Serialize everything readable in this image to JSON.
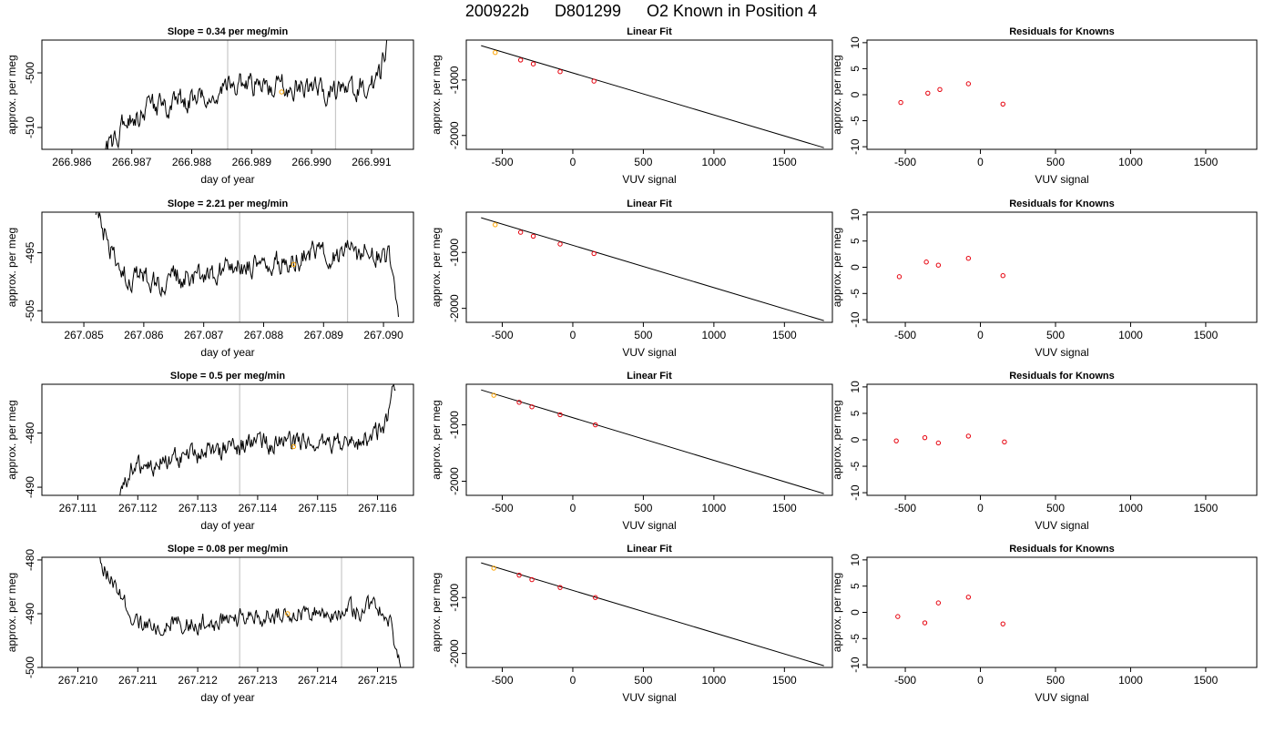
{
  "figure": {
    "title_run": "200922b",
    "title_id": "D801299",
    "title_desc": "O2 Known in Position  4"
  },
  "colors": {
    "trace": "#000000",
    "marker_standard": "#e6000c",
    "marker_highlight": "#ffa500",
    "vline": "#c8c8c8"
  },
  "chart_data": [
    {
      "panel": "trace-1",
      "type": "line",
      "title": "Slope =  0.34  per meg/min",
      "xlabel": "day of year",
      "ylabel": "approx. per meg",
      "xlim": [
        266.9855,
        266.9917
      ],
      "ylim": [
        -514,
        -494
      ],
      "xticks": [
        "266.986",
        "266.987",
        "266.988",
        "266.989",
        "266.990",
        "266.991"
      ],
      "xtick_values": [
        266.986,
        266.987,
        266.988,
        266.989,
        266.99,
        266.991
      ],
      "yticks": [
        "-500",
        "-510"
      ],
      "ytick_values": [
        -500,
        -510
      ],
      "vlines": [
        266.9886,
        266.9904
      ],
      "highlight": {
        "x": 266.9895,
        "y": -503.5
      },
      "trace": {
        "start": 266.98655,
        "end": 266.99135,
        "anchors": [
          [
            266.98655,
            -515
          ],
          [
            266.9869,
            -509
          ],
          [
            266.9873,
            -506.5
          ],
          [
            266.9879,
            -505
          ],
          [
            266.9884,
            -504.5
          ],
          [
            266.98865,
            -502
          ],
          [
            266.9892,
            -502.5
          ],
          [
            266.9897,
            -502.5
          ],
          [
            266.9902,
            -503
          ],
          [
            266.9907,
            -503
          ],
          [
            266.991,
            -502.5
          ],
          [
            266.99115,
            -500
          ],
          [
            266.9913,
            -493
          ]
        ],
        "noise": 1.8
      }
    },
    {
      "panel": "fit-1",
      "type": "scatter+line",
      "title": "Linear Fit",
      "xlabel": "VUV signal",
      "ylabel": "approx. per meg",
      "xlim": [
        -755,
        1840
      ],
      "ylim": [
        -2250,
        -280
      ],
      "xticks": [
        "-500",
        "0",
        "500",
        "1000",
        "1500"
      ],
      "xtick_values": [
        -500,
        0,
        500,
        1000,
        1500
      ],
      "yticks": [
        "-1000",
        "-2000"
      ],
      "ytick_values": [
        -1000,
        -2000
      ],
      "line": {
        "x": [
          -650,
          1780
        ],
        "y": [
          -380,
          -2220
        ]
      },
      "points": {
        "x": [
          -550,
          -370,
          -280,
          -90,
          150
        ],
        "y": [
          -505,
          -640,
          -710,
          -850,
          -1020
        ]
      },
      "highlight_index": 0
    },
    {
      "panel": "res-1",
      "type": "scatter",
      "title": "Residuals for Knowns",
      "xlabel": "VUV signal",
      "ylabel": "approx. per meg",
      "xlim": [
        -755,
        1840
      ],
      "ylim": [
        -10.5,
        10.5
      ],
      "xticks": [
        "-500",
        "0",
        "500",
        "1000",
        "1500"
      ],
      "xtick_values": [
        -500,
        0,
        500,
        1000,
        1500
      ],
      "yticks": [
        "-10",
        "-5",
        "0",
        "5",
        "10"
      ],
      "ytick_values": [
        -10,
        -5,
        0,
        5,
        10
      ],
      "points": {
        "x": [
          -530,
          -350,
          -270,
          -80,
          150
        ],
        "y": [
          -1.5,
          0.3,
          1.0,
          2.1,
          -1.8
        ]
      }
    },
    {
      "panel": "trace-2",
      "type": "line",
      "title": "Slope =  2.21  per meg/min",
      "xlabel": "day of year",
      "ylabel": "approx. per meg",
      "xlim": [
        267.0843,
        267.0905
      ],
      "ylim": [
        -507,
        -488
      ],
      "xticks": [
        "267.085",
        "267.086",
        "267.087",
        "267.088",
        "267.089",
        "267.090"
      ],
      "xtick_values": [
        267.085,
        267.086,
        267.087,
        267.088,
        267.089,
        267.09
      ],
      "yticks": [
        "-495",
        "-505"
      ],
      "ytick_values": [
        -495,
        -505
      ],
      "vlines": [
        267.0876,
        267.0894
      ],
      "highlight": {
        "x": 267.0885,
        "y": -497
      },
      "trace": {
        "start": 267.0852,
        "end": 267.09025,
        "anchors": [
          [
            267.0852,
            -488
          ],
          [
            267.0856,
            -499
          ],
          [
            267.0862,
            -500
          ],
          [
            267.0868,
            -499
          ],
          [
            267.0874,
            -497.5
          ],
          [
            267.088,
            -497.5
          ],
          [
            267.0885,
            -496
          ],
          [
            267.089,
            -494.5
          ],
          [
            267.0894,
            -495
          ],
          [
            267.0899,
            -495
          ],
          [
            267.0901,
            -496
          ],
          [
            267.09025,
            -507
          ]
        ],
        "noise": 1.8
      }
    },
    {
      "panel": "fit-2",
      "type": "scatter+line",
      "title": "Linear Fit",
      "xlabel": "VUV signal",
      "ylabel": "approx. per meg",
      "xlim": [
        -755,
        1840
      ],
      "ylim": [
        -2250,
        -280
      ],
      "xticks": [
        "-500",
        "0",
        "500",
        "1000",
        "1500"
      ],
      "xtick_values": [
        -500,
        0,
        500,
        1000,
        1500
      ],
      "yticks": [
        "-1000",
        "-2000"
      ],
      "ytick_values": [
        -1000,
        -2000
      ],
      "line": {
        "x": [
          -650,
          1780
        ],
        "y": [
          -380,
          -2220
        ]
      },
      "points": {
        "x": [
          -550,
          -370,
          -280,
          -90,
          150
        ],
        "y": [
          -505,
          -640,
          -710,
          -850,
          -1020
        ]
      },
      "highlight_index": 0
    },
    {
      "panel": "res-2",
      "type": "scatter",
      "title": "Residuals for Knowns",
      "xlabel": "VUV signal",
      "ylabel": "approx. per meg",
      "xlim": [
        -755,
        1840
      ],
      "ylim": [
        -10.5,
        10.5
      ],
      "xticks": [
        "-500",
        "0",
        "500",
        "1000",
        "1500"
      ],
      "xtick_values": [
        -500,
        0,
        500,
        1000,
        1500
      ],
      "yticks": [
        "-10",
        "-5",
        "0",
        "5",
        "10"
      ],
      "ytick_values": [
        -10,
        -5,
        0,
        5,
        10
      ],
      "points": {
        "x": [
          -540,
          -360,
          -280,
          -80,
          150
        ],
        "y": [
          -1.8,
          1.0,
          0.4,
          1.7,
          -1.6
        ]
      }
    },
    {
      "panel": "trace-3",
      "type": "line",
      "title": "Slope =  0.5  per meg/min",
      "xlabel": "day of year",
      "ylabel": "approx. per meg",
      "xlim": [
        267.1104,
        267.1166
      ],
      "ylim": [
        -491.5,
        -471
      ],
      "xticks": [
        "267.111",
        "267.112",
        "267.113",
        "267.114",
        "267.115",
        "267.116"
      ],
      "xtick_values": [
        267.111,
        267.112,
        267.113,
        267.114,
        267.115,
        267.116
      ],
      "yticks": [
        "-480",
        "-490"
      ],
      "ytick_values": [
        -480,
        -490
      ],
      "vlines": [
        267.1137,
        267.1155
      ],
      "highlight": {
        "x": 267.1146,
        "y": -482.5
      },
      "trace": {
        "start": 267.1117,
        "end": 267.1163,
        "anchors": [
          [
            267.1117,
            -492
          ],
          [
            267.1119,
            -487
          ],
          [
            267.1124,
            -485.5
          ],
          [
            267.113,
            -484
          ],
          [
            267.1136,
            -482.5
          ],
          [
            267.1142,
            -482
          ],
          [
            267.1148,
            -482
          ],
          [
            267.1154,
            -481.5
          ],
          [
            267.1159,
            -481
          ],
          [
            267.11615,
            -478
          ],
          [
            267.1163,
            -471
          ]
        ],
        "noise": 1.6
      }
    },
    {
      "panel": "fit-3",
      "type": "scatter+line",
      "title": "Linear Fit",
      "xlabel": "VUV signal",
      "ylabel": "approx. per meg",
      "xlim": [
        -755,
        1840
      ],
      "ylim": [
        -2250,
        -280
      ],
      "xticks": [
        "-500",
        "0",
        "500",
        "1000",
        "1500"
      ],
      "xtick_values": [
        -500,
        0,
        500,
        1000,
        1500
      ],
      "yticks": [
        "-1000",
        "-2000"
      ],
      "ytick_values": [
        -1000,
        -2000
      ],
      "line": {
        "x": [
          -650,
          1780
        ],
        "y": [
          -380,
          -2220
        ]
      },
      "points": {
        "x": [
          -560,
          -380,
          -290,
          -90,
          160
        ],
        "y": [
          -475,
          -600,
          -680,
          -820,
          -1000
        ]
      },
      "highlight_index": 0
    },
    {
      "panel": "res-3",
      "type": "scatter",
      "title": "Residuals for Knowns",
      "xlabel": "VUV signal",
      "ylabel": "approx. per meg",
      "xlim": [
        -755,
        1840
      ],
      "ylim": [
        -10.5,
        10.5
      ],
      "xticks": [
        "-500",
        "0",
        "500",
        "1000",
        "1500"
      ],
      "xtick_values": [
        -500,
        0,
        500,
        1000,
        1500
      ],
      "yticks": [
        "-10",
        "-5",
        "0",
        "5",
        "10"
      ],
      "ytick_values": [
        -10,
        -5,
        0,
        5,
        10
      ],
      "points": {
        "x": [
          -560,
          -370,
          -280,
          -80,
          160
        ],
        "y": [
          -0.2,
          0.4,
          -0.6,
          0.7,
          -0.4
        ]
      }
    },
    {
      "panel": "trace-4",
      "type": "line",
      "title": "Slope =  0.08  per meg/min",
      "xlabel": "day of year",
      "ylabel": "approx. per meg",
      "xlim": [
        267.2094,
        267.2156
      ],
      "ylim": [
        -500,
        -479.5
      ],
      "xticks": [
        "267.210",
        "267.211",
        "267.212",
        "267.213",
        "267.214",
        "267.215"
      ],
      "xtick_values": [
        267.21,
        267.211,
        267.212,
        267.213,
        267.214,
        267.215
      ],
      "yticks": [
        "-480",
        "-490",
        "-500"
      ],
      "ytick_values": [
        -480,
        -490,
        -500
      ],
      "vlines": [
        267.2127,
        267.2144
      ],
      "highlight": {
        "x": 267.2135,
        "y": -490
      },
      "trace": {
        "start": 267.2103,
        "end": 267.2154,
        "anchors": [
          [
            267.2103,
            -479
          ],
          [
            267.2107,
            -487
          ],
          [
            267.211,
            -492.5
          ],
          [
            267.2115,
            -492
          ],
          [
            267.212,
            -491.5
          ],
          [
            267.2125,
            -491
          ],
          [
            267.213,
            -490.5
          ],
          [
            267.2135,
            -490
          ],
          [
            267.214,
            -489.5
          ],
          [
            267.2145,
            -489.5
          ],
          [
            267.215,
            -489
          ],
          [
            267.2152,
            -491
          ],
          [
            267.2154,
            -501
          ]
        ],
        "noise": 1.5
      }
    },
    {
      "panel": "fit-4",
      "type": "scatter+line",
      "title": "Linear Fit",
      "xlabel": "VUV signal",
      "ylabel": "approx. per meg",
      "xlim": [
        -755,
        1840
      ],
      "ylim": [
        -2250,
        -280
      ],
      "xticks": [
        "-500",
        "0",
        "500",
        "1000",
        "1500"
      ],
      "xtick_values": [
        -500,
        0,
        500,
        1000,
        1500
      ],
      "yticks": [
        "-1000",
        "-2000"
      ],
      "ytick_values": [
        -1000,
        -2000
      ],
      "line": {
        "x": [
          -650,
          1780
        ],
        "y": [
          -380,
          -2220
        ]
      },
      "points": {
        "x": [
          -560,
          -380,
          -290,
          -90,
          160
        ],
        "y": [
          -475,
          -600,
          -680,
          -820,
          -1000
        ]
      },
      "highlight_index": 0
    },
    {
      "panel": "res-4",
      "type": "scatter",
      "title": "Residuals for Knowns",
      "xlabel": "VUV signal",
      "ylabel": "approx. per meg",
      "xlim": [
        -755,
        1840
      ],
      "ylim": [
        -10.5,
        10.5
      ],
      "xticks": [
        "-500",
        "0",
        "500",
        "1000",
        "1500"
      ],
      "xtick_values": [
        -500,
        0,
        500,
        1000,
        1500
      ],
      "yticks": [
        "-10",
        "-5",
        "0",
        "5",
        "10"
      ],
      "ytick_values": [
        -10,
        -5,
        0,
        5,
        10
      ],
      "points": {
        "x": [
          -550,
          -370,
          -280,
          -80,
          150
        ],
        "y": [
          -0.8,
          -2.0,
          1.8,
          2.9,
          -2.2
        ]
      }
    }
  ]
}
